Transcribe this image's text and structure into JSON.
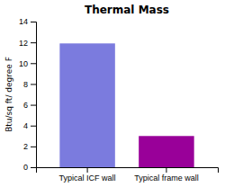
{
  "chart_data": {
    "type": "bar",
    "title": "Thermal Mass",
    "categories": [
      "Typical ICF wall",
      "Typical frame wall"
    ],
    "values": [
      11.9,
      3.0
    ],
    "colors": [
      "#7b7bde",
      "#990099"
    ],
    "ylabel": "Btu/sq ft/ degree F",
    "ylim": [
      0,
      14
    ],
    "yticks": [
      0,
      2,
      4,
      6,
      8,
      10,
      12,
      14
    ],
    "grid": false
  }
}
